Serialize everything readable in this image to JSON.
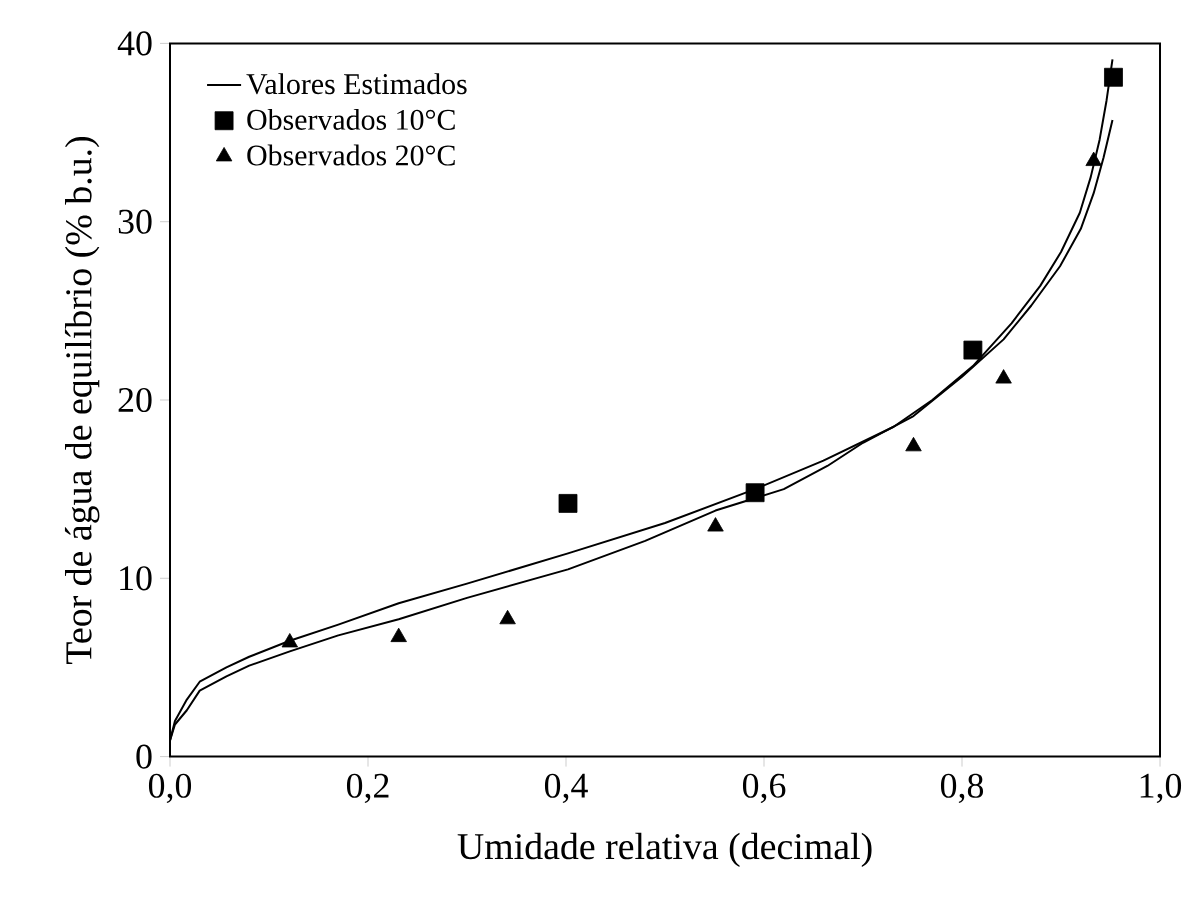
{
  "chart_data": {
    "type": "scatter",
    "xlabel": "Umidade relativa (decimal)",
    "ylabel": "Teor de água de equilíbrio (% b.u.)",
    "xlim": [
      0,
      1
    ],
    "ylim": [
      0,
      40
    ],
    "xticks": [
      {
        "value": 0,
        "label": "0,0"
      },
      {
        "value": 0.2,
        "label": "0,2"
      },
      {
        "value": 0.4,
        "label": "0,4"
      },
      {
        "value": 0.6,
        "label": "0,6"
      },
      {
        "value": 0.8,
        "label": "0,8"
      },
      {
        "value": 1,
        "label": "1,0"
      }
    ],
    "yticks": [
      0,
      10,
      20,
      30,
      40
    ],
    "grid": false,
    "legend": "top left",
    "series": [
      {
        "name": "Valores Estimados",
        "type": "line",
        "color": "#000000",
        "marker": "none",
        "line_style": "solid",
        "x": [
          0,
          0.005,
          0.017,
          0.03,
          0.057,
          0.08,
          0.121,
          0.17,
          0.231,
          0.3,
          0.402,
          0.5,
          0.591,
          0.66,
          0.731,
          0.77,
          0.811,
          0.85,
          0.879,
          0.9,
          0.919,
          0.93,
          0.939,
          0.946,
          0.952
        ],
        "values": [
          0.9,
          2.0,
          3.2,
          4.2,
          5.0,
          5.6,
          6.5,
          7.4,
          8.6,
          9.7,
          11.4,
          13.1,
          15.0,
          16.6,
          18.5,
          20.0,
          21.9,
          24.3,
          26.4,
          28.3,
          30.5,
          32.5,
          34.6,
          36.8,
          39.1
        ]
      },
      {
        "type": "line",
        "color": "#000000",
        "marker": "none",
        "line_style": "solid",
        "x": [
          0,
          0.005,
          0.017,
          0.03,
          0.057,
          0.08,
          0.121,
          0.17,
          0.231,
          0.3,
          0.402,
          0.48,
          0.551,
          0.62,
          0.664,
          0.7,
          0.751,
          0.8,
          0.842,
          0.87,
          0.899,
          0.92,
          0.933,
          0.943,
          0.952
        ],
        "values": [
          0.9,
          1.8,
          2.6,
          3.7,
          4.5,
          5.1,
          5.9,
          6.8,
          7.7,
          8.9,
          10.5,
          12.1,
          13.8,
          15.0,
          16.3,
          17.6,
          19.1,
          21.3,
          23.4,
          25.3,
          27.5,
          29.6,
          31.6,
          33.6,
          35.7
        ]
      },
      {
        "name": "Observados 10°C",
        "color": "#000000",
        "marker": "square",
        "x": [
          0.402,
          0.591,
          0.811,
          0.953
        ],
        "values": [
          14.2,
          14.8,
          22.8,
          38.1
        ]
      },
      {
        "name": "Observados 20°C",
        "color": "#000000",
        "marker": "triangle",
        "x": [
          0.121,
          0.231,
          0.341,
          0.551,
          0.751,
          0.842,
          0.933
        ],
        "values": [
          6.4,
          6.7,
          7.7,
          12.9,
          17.4,
          21.2,
          33.4
        ]
      }
    ]
  }
}
